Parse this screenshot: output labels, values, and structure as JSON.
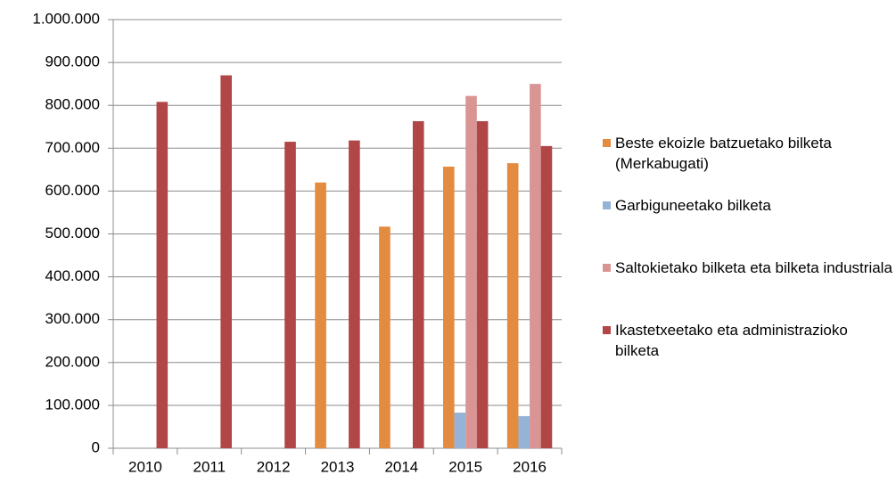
{
  "chart_data": {
    "type": "bar",
    "categories": [
      "2010",
      "2011",
      "2012",
      "2013",
      "2014",
      "2015",
      "2016"
    ],
    "series": [
      {
        "name": "Beste ekoizle batzuetako bilketa (Merkabugati)",
        "color": "#e38b3f",
        "values": [
          null,
          null,
          null,
          620000,
          517000,
          657000,
          665000
        ]
      },
      {
        "name": "Garbiguneetako bilketa",
        "color": "#95b3d7",
        "values": [
          null,
          null,
          null,
          null,
          null,
          83000,
          75000
        ]
      },
      {
        "name": "Saltokietako bilketa eta bilketa industriala",
        "color": "#d99594",
        "values": [
          null,
          null,
          null,
          null,
          null,
          822000,
          850000
        ]
      },
      {
        "name": "Ikastetxeetako eta administrazioko bilketa",
        "color": "#b04645",
        "values": [
          808000,
          870000,
          715000,
          718000,
          763000,
          763000,
          705000
        ]
      }
    ],
    "ylim": [
      0,
      1000000
    ],
    "yticks": [
      0,
      {
        "value": 100000,
        "label": "100.000"
      },
      {
        "value": 200000,
        "label": "200.000"
      },
      {
        "value": 300000,
        "label": "300.000"
      },
      {
        "value": 400000,
        "label": "400.000"
      },
      {
        "value": 500000,
        "label": "500.000"
      },
      {
        "value": 600000,
        "label": "600.000"
      },
      {
        "value": 700000,
        "label": "700.000"
      },
      {
        "value": 800000,
        "label": "800.000"
      },
      {
        "value": 900000,
        "label": "900.000"
      },
      {
        "value": 1000000,
        "label": "1.000.000"
      }
    ],
    "grid": true,
    "legend": "right"
  }
}
